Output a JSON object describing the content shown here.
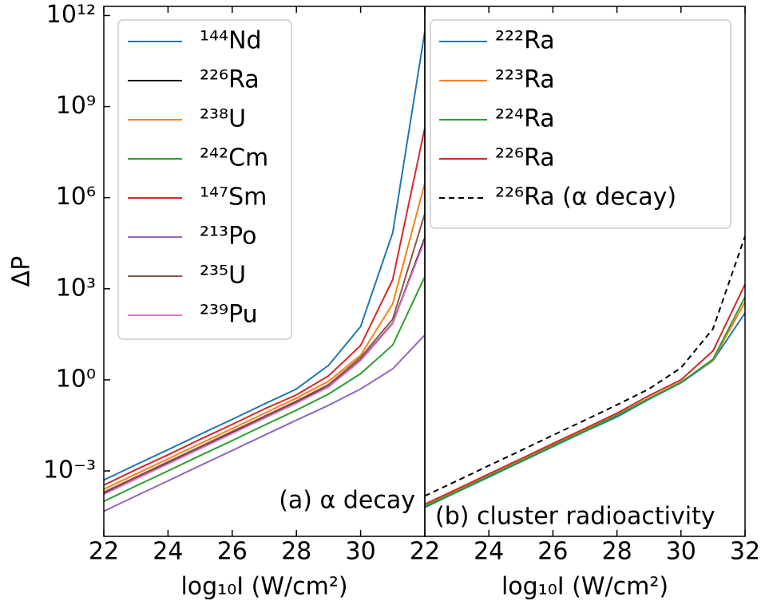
{
  "chart_data": [
    {
      "type": "line",
      "annotation": "(a) α decay",
      "xlabel": "log₁₀I (W/cm²)",
      "ylabel": "ΔP",
      "x": [
        22,
        23,
        24,
        25,
        26,
        27,
        28,
        29,
        30,
        31,
        32
      ],
      "xlim": [
        22,
        32
      ],
      "xticks": [
        22,
        24,
        26,
        28,
        30
      ],
      "ylim": [
        7e-06,
        2000000000000.0
      ],
      "log_y": true,
      "yticks": [
        {
          "value": 0.001,
          "label": "10⁻³"
        },
        {
          "value": 1,
          "label": "10⁰"
        },
        {
          "value": 1000.0,
          "label": "10³"
        },
        {
          "value": 1000000.0,
          "label": "10⁶"
        },
        {
          "value": 1000000000.0,
          "label": "10⁹"
        },
        {
          "value": 1000000000000.0,
          "label": "10¹²"
        }
      ],
      "legend": "upper left",
      "series": [
        {
          "name": "¹⁴⁴Nd",
          "color": "#1f77b4",
          "values": [
            0.0005,
            0.0016,
            0.005,
            0.016,
            0.05,
            0.16,
            0.5,
            3,
            57,
            70000.0,
            300000000000.0
          ]
        },
        {
          "name": "²²⁶Ra",
          "color": "#000000",
          "values": [
            0.00018,
            0.00057,
            0.0018,
            0.0057,
            0.018,
            0.057,
            0.18,
            0.6,
            4.5,
            73,
            47000.0
          ]
        },
        {
          "name": "²³⁸U",
          "color": "#ff7f0e",
          "values": [
            0.00025,
            0.00079,
            0.0025,
            0.0079,
            0.025,
            0.079,
            0.25,
            0.9,
            6.5,
            320,
            3000000.0
          ]
        },
        {
          "name": "²⁴²Cm",
          "color": "#2ca02c",
          "values": [
            0.0001,
            0.00032,
            0.001,
            0.0032,
            0.01,
            0.032,
            0.1,
            0.34,
            1.6,
            14,
            2500
          ]
        },
        {
          "name": "¹⁴⁷Sm",
          "color": "#d62728",
          "values": [
            0.00034,
            0.0011,
            0.0034,
            0.011,
            0.034,
            0.11,
            0.32,
            1.35,
            13.5,
            2000,
            200000000.0
          ]
        },
        {
          "name": "²¹³Po",
          "color": "#9467bd",
          "values": [
            4.7e-05,
            0.00015,
            0.00047,
            0.0015,
            0.0047,
            0.015,
            0.047,
            0.145,
            0.5,
            2.3,
            30
          ]
        },
        {
          "name": "²³⁵U",
          "color": "#8c564b",
          "values": [
            0.0002,
            0.00063,
            0.002,
            0.0063,
            0.02,
            0.063,
            0.2,
            0.7,
            5.5,
            100,
            300000.0
          ]
        },
        {
          "name": "²³⁹Pu",
          "color": "#e377c2",
          "values": [
            0.00017,
            0.00054,
            0.0017,
            0.0054,
            0.017,
            0.054,
            0.17,
            0.58,
            4.3,
            70,
            40000.0
          ]
        }
      ]
    },
    {
      "type": "line",
      "annotation": "(b) cluster radioactivity",
      "xlabel": "log₁₀I (W/cm²)",
      "x": [
        22,
        23,
        24,
        25,
        26,
        27,
        28,
        29,
        30,
        31,
        32
      ],
      "xlim": [
        22,
        32
      ],
      "xticks": [
        22,
        24,
        26,
        28,
        30,
        32
      ],
      "ylim": [
        7e-06,
        2000000000000.0
      ],
      "log_y": true,
      "legend": "upper left",
      "series": [
        {
          "name": "²²²Ra",
          "color": "#1f77b4",
          "values": [
            6.3e-05,
            0.0002,
            0.00063,
            0.002,
            0.0063,
            0.02,
            0.06,
            0.23,
            0.8,
            4.3,
            160
          ]
        },
        {
          "name": "²²³Ra",
          "color": "#ff7f0e",
          "values": [
            7e-05,
            0.00022,
            0.0007,
            0.0022,
            0.007,
            0.022,
            0.07,
            0.25,
            0.85,
            4.5,
            370
          ]
        },
        {
          "name": "²²⁴Ra",
          "color": "#2ca02c",
          "values": [
            6.8e-05,
            0.00021,
            0.00068,
            0.0021,
            0.0068,
            0.021,
            0.068,
            0.24,
            0.82,
            4.8,
            540
          ]
        },
        {
          "name": "²²⁶Ra",
          "color": "#d62728",
          "values": [
            8e-05,
            0.00025,
            0.0008,
            0.0025,
            0.008,
            0.025,
            0.08,
            0.3,
            1,
            9,
            1400
          ]
        },
        {
          "name": "²²⁶Ra (α decay)",
          "color": "#000000",
          "dashed": true,
          "values": [
            0.00015,
            0.00047,
            0.0015,
            0.0047,
            0.015,
            0.047,
            0.15,
            0.5,
            2.5,
            48,
            54000.0
          ]
        }
      ]
    }
  ]
}
